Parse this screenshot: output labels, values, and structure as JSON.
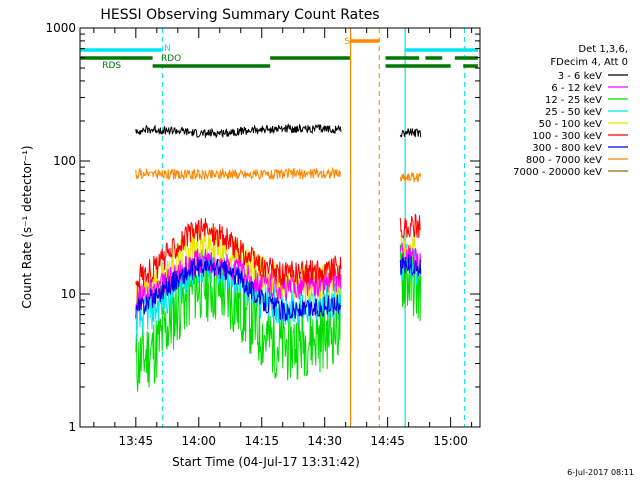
{
  "chart_data": {
    "type": "line",
    "title": "HESSI Observing Summary Count Rates",
    "xlabel": "Start Time (04-Jul-17 13:31:42)",
    "ylabel": "Count Rate (s⁻¹ detector⁻¹)",
    "yscale": "log",
    "ylim": [
      1,
      1000
    ],
    "xlim": [
      "13:31:42",
      "15:07:00"
    ],
    "x_ticks": [
      "13:45",
      "14:00",
      "14:15",
      "14:30",
      "14:45",
      "15:00"
    ],
    "y_ticks": [
      "1",
      "10",
      "100",
      "1000"
    ],
    "grid": false,
    "legend_position": "right",
    "legend_header": [
      "Det 1,3,6,",
      "FDecim 4, Att 0"
    ],
    "date_stamp": "6-Jul-2017 08:11",
    "series": [
      {
        "name": "3 - 6 keV",
        "color": "#000000",
        "points": [
          [
            "13:45",
            170
          ],
          [
            "13:50",
            172
          ],
          [
            "13:55",
            168
          ],
          [
            "14:00",
            160
          ],
          [
            "14:05",
            162
          ],
          [
            "14:10",
            168
          ],
          [
            "14:15",
            172
          ],
          [
            "14:20",
            175
          ],
          [
            "14:25",
            175
          ],
          [
            "14:30",
            174
          ],
          [
            "14:34",
            174
          ],
          null,
          [
            "14:48",
            160
          ],
          [
            "14:50",
            165
          ],
          [
            "14:53",
            160
          ]
        ]
      },
      {
        "name": "6 - 12 keV",
        "color": "#ff00ff",
        "points": [
          [
            "13:45",
            9
          ],
          [
            "13:50",
            11
          ],
          [
            "13:55",
            14
          ],
          [
            "14:00",
            18
          ],
          [
            "14:05",
            17
          ],
          [
            "14:10",
            15
          ],
          [
            "14:15",
            12
          ],
          [
            "14:20",
            11
          ],
          [
            "14:25",
            11.5
          ],
          [
            "14:30",
            12
          ],
          [
            "14:34",
            13
          ],
          null,
          [
            "14:48",
            20
          ],
          [
            "14:50",
            19
          ],
          [
            "14:53",
            17
          ]
        ]
      },
      {
        "name": "12 - 25 keV",
        "color": "#00dd00",
        "points": [
          [
            "13:45",
            3
          ],
          [
            "13:50",
            4
          ],
          [
            "13:55",
            8
          ],
          [
            "14:00",
            12
          ],
          [
            "14:05",
            11
          ],
          [
            "14:10",
            8
          ],
          [
            "14:15",
            5
          ],
          [
            "14:20",
            4
          ],
          [
            "14:25",
            4.5
          ],
          [
            "14:30",
            5
          ],
          [
            "14:34",
            6
          ],
          null,
          [
            "14:48",
            14
          ],
          [
            "14:50",
            13
          ],
          [
            "14:53",
            11
          ]
        ]
      },
      {
        "name": "25 - 50 keV",
        "color": "#00e5ee",
        "points": [
          [
            "13:45",
            6
          ],
          [
            "13:50",
            8
          ],
          [
            "13:55",
            12
          ],
          [
            "14:00",
            16
          ],
          [
            "14:05",
            15
          ],
          [
            "14:10",
            12
          ],
          [
            "14:15",
            9
          ],
          [
            "14:20",
            8
          ],
          [
            "14:25",
            8
          ],
          [
            "14:30",
            8.5
          ],
          [
            "14:34",
            9
          ],
          null,
          [
            "14:48",
            18
          ],
          [
            "14:50",
            17
          ],
          [
            "14:53",
            15
          ]
        ]
      },
      {
        "name": "50 - 100 keV",
        "color": "#e5e500",
        "points": [
          [
            "13:45",
            9
          ],
          [
            "13:50",
            12
          ],
          [
            "13:55",
            18
          ],
          [
            "14:00",
            24
          ],
          [
            "14:05",
            22
          ],
          [
            "14:10",
            18
          ],
          [
            "14:15",
            14
          ],
          [
            "14:20",
            12
          ],
          [
            "14:25",
            12
          ],
          [
            "14:30",
            12
          ],
          [
            "14:34",
            13
          ],
          null,
          [
            "14:48",
            22
          ],
          [
            "14:50",
            21
          ],
          [
            "14:53",
            19
          ]
        ]
      },
      {
        "name": "100 - 300 keV",
        "color": "#ff0000",
        "points": [
          [
            "13:45",
            13
          ],
          [
            "13:50",
            16
          ],
          [
            "13:55",
            24
          ],
          [
            "14:00",
            31
          ],
          [
            "14:05",
            28
          ],
          [
            "14:10",
            21
          ],
          [
            "14:15",
            16
          ],
          [
            "14:20",
            14
          ],
          [
            "14:25",
            14.5
          ],
          [
            "14:30",
            15
          ],
          [
            "14:34",
            16
          ],
          null,
          [
            "14:48",
            30
          ],
          [
            "14:50",
            31
          ],
          [
            "14:53",
            33
          ]
        ]
      },
      {
        "name": "300 - 800 keV",
        "color": "#0000ee",
        "points": [
          [
            "13:45",
            7.5
          ],
          [
            "13:50",
            10
          ],
          [
            "13:55",
            13
          ],
          [
            "14:00",
            16
          ],
          [
            "14:05",
            15.5
          ],
          [
            "14:10",
            13
          ],
          [
            "14:15",
            9
          ],
          [
            "14:20",
            7.5
          ],
          [
            "14:25",
            7.5
          ],
          [
            "14:30",
            8
          ],
          [
            "14:34",
            8.5
          ],
          null,
          [
            "14:48",
            17
          ],
          [
            "14:50",
            16.5
          ],
          [
            "14:53",
            15
          ]
        ]
      },
      {
        "name": "800 - 7000 keV",
        "color": "#ff8800",
        "points": [
          [
            "13:45",
            80
          ],
          [
            "13:50",
            80
          ],
          [
            "13:55",
            79
          ],
          [
            "14:00",
            79
          ],
          [
            "14:05",
            80
          ],
          [
            "14:10",
            80
          ],
          [
            "14:15",
            79
          ],
          [
            "14:20",
            80
          ],
          [
            "14:25",
            80
          ],
          [
            "14:30",
            81
          ],
          [
            "14:34",
            80
          ],
          null,
          [
            "14:48",
            75
          ],
          [
            "14:50",
            76
          ],
          [
            "14:53",
            75
          ]
        ]
      },
      {
        "name": "7000 - 20000 keV",
        "color": "#996600",
        "points": []
      }
    ],
    "flag_lines": [
      {
        "label": "RDS",
        "color": "#007700"
      },
      {
        "label": "RDO",
        "color": "#007700"
      },
      {
        "label": "N",
        "color": "#00e5ee"
      },
      {
        "label": "S",
        "color": "#ff8800"
      }
    ]
  }
}
